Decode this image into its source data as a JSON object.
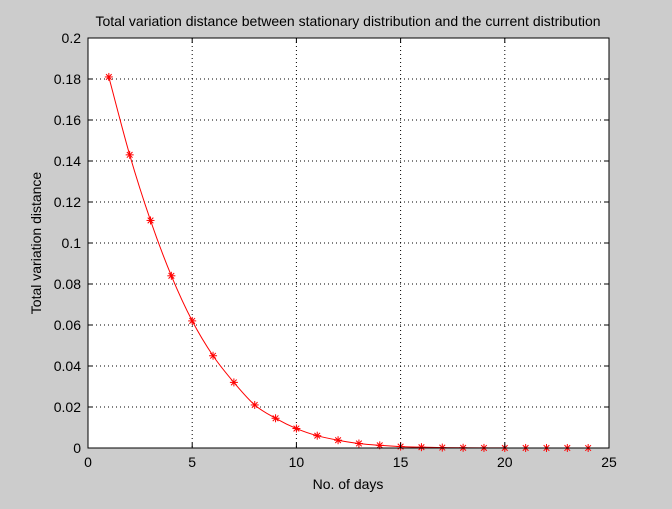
{
  "chart_data": {
    "type": "line",
    "title": "Total variation distance between stationary distribution and the current distribution",
    "xlabel": "No. of days",
    "ylabel": "Total variation distance",
    "xlim": [
      0,
      25
    ],
    "ylim": [
      0,
      0.2
    ],
    "xticks": [
      0,
      5,
      10,
      15,
      20,
      25
    ],
    "yticks": [
      0,
      0.02,
      0.04,
      0.06,
      0.08,
      0.1,
      0.12,
      0.14,
      0.16,
      0.18,
      0.2
    ],
    "xtick_labels": [
      "0",
      "5",
      "10",
      "15",
      "20",
      "25"
    ],
    "ytick_labels": [
      "0",
      "0.02",
      "0.04",
      "0.06",
      "0.08",
      "0.1",
      "0.12",
      "0.14",
      "0.16",
      "0.18",
      "0.2"
    ],
    "grid": true,
    "grid_style": "dotted",
    "marker": "asterisk",
    "series": [
      {
        "color": "#ff0000",
        "x": [
          1,
          2,
          3,
          4,
          5,
          6,
          7,
          8,
          9,
          10,
          11,
          12,
          13,
          14,
          15,
          16,
          17,
          18,
          19,
          20,
          21,
          22,
          23,
          24
        ],
        "y": [
          0.181,
          0.143,
          0.111,
          0.084,
          0.062,
          0.045,
          0.032,
          0.021,
          0.0145,
          0.0095,
          0.006,
          0.0038,
          0.0022,
          0.0013,
          0.0007,
          0.0004,
          0.0002,
          0.0001,
          5e-05,
          3e-05,
          2e-05,
          1e-05,
          1e-05,
          0.0
        ]
      }
    ]
  }
}
